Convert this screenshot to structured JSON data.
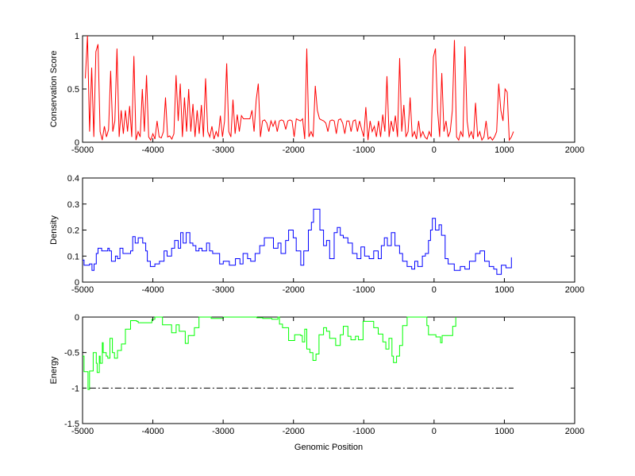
{
  "chart_data": [
    {
      "type": "line",
      "name": "conservation",
      "ylabel": "Conservation Score",
      "xlabel": "",
      "xlim": [
        -5000,
        2000
      ],
      "ylim": [
        0,
        1
      ],
      "xticks": [
        -5000,
        -4000,
        -3000,
        -2000,
        -1000,
        0,
        1000,
        2000
      ],
      "yticks": [
        0,
        0.5,
        1
      ],
      "ytick_labels": [
        "0",
        "0.5",
        "1"
      ],
      "color": "#ff0000",
      "x_start": -4960,
      "x_step": 30,
      "values": [
        0.6,
        1.0,
        0.1,
        0.7,
        0.05,
        0.85,
        0.92,
        0.1,
        0.02,
        0.15,
        0.05,
        0.12,
        0.67,
        0.1,
        0.2,
        0.88,
        0.05,
        0.3,
        0.08,
        0.3,
        0.1,
        0.34,
        0.05,
        0.81,
        0.02,
        0.1,
        0.05,
        0.5,
        0.1,
        0.63,
        0.05,
        0.02,
        0.08,
        0.03,
        0.2,
        0.05,
        0.04,
        0.1,
        0.42,
        0.05,
        0.06,
        0.03,
        0.08,
        0.63,
        0.2,
        0.55,
        0.05,
        0.42,
        0.1,
        0.5,
        0.1,
        0.36,
        0.05,
        0.3,
        0.08,
        0.35,
        0.05,
        0.6,
        0.1,
        0.05,
        0.15,
        0.03,
        0.1,
        0.05,
        0.25,
        0.05,
        0.2,
        0.74,
        0.1,
        0.05,
        0.4,
        0.08,
        0.26,
        0.1,
        0.25,
        0.22,
        0.22,
        0.22,
        0.22,
        0.3,
        0.1,
        0.4,
        0.55,
        0.05,
        0.2,
        0.21,
        0.18,
        0.1,
        0.2,
        0.15,
        0.2,
        0.1,
        0.2,
        0.21,
        0.2,
        0.12,
        0.2,
        0.21,
        0.2,
        0.05,
        0.22,
        0.21,
        0.2,
        0.22,
        0.03,
        0.88,
        0.05,
        0.1,
        0.05,
        0.53,
        0.3,
        0.22,
        0.21,
        0.2,
        0.18,
        0.1,
        0.2,
        0.21,
        0.2,
        0.08,
        0.21,
        0.22,
        0.18,
        0.08,
        0.2,
        0.2,
        0.1,
        0.2,
        0.21,
        0.1,
        0.2,
        0.12,
        0.05,
        0.33,
        0.02,
        0.2,
        0.1,
        0.15,
        0.05,
        0.2,
        0.05,
        0.26,
        0.1,
        0.62,
        0.05,
        0.2,
        0.1,
        0.25,
        0.05,
        0.79,
        0.1,
        0.35,
        0.05,
        0.1,
        0.42,
        0.05,
        0.1,
        0.03,
        0.2,
        0.05,
        0.1,
        0.05,
        0.03,
        0.1,
        0.05,
        0.8,
        0.88,
        0.3,
        0.05,
        0.65,
        0.1,
        0.2,
        0.05,
        0.1,
        0.3,
        0.96,
        0.05,
        0.02,
        0.1,
        0.05,
        0.9,
        0.2,
        0.05,
        0.1,
        0.03,
        0.37,
        0.05,
        0.1,
        0.02,
        0.05,
        0.2,
        0.03,
        0.05,
        0.02,
        0.05,
        0.1,
        0.55,
        0.3,
        0.2,
        0.5,
        0.47,
        0.02,
        0.05,
        0.1
      ]
    },
    {
      "type": "line",
      "name": "density",
      "ylabel": "Density",
      "xlabel": "",
      "xlim": [
        -5000,
        2000
      ],
      "ylim": [
        0,
        0.4
      ],
      "xticks": [
        -5000,
        -4000,
        -3000,
        -2000,
        -1000,
        0,
        1000,
        2000
      ],
      "yticks": [
        0,
        0.1,
        0.2,
        0.3,
        0.4
      ],
      "ytick_labels": [
        "0",
        "0.1",
        "0.2",
        "0.3",
        "0.4"
      ],
      "color": "#0000ff",
      "points": [
        [
          -5000,
          0.085
        ],
        [
          -4978,
          0.065
        ],
        [
          -4901,
          0.07
        ],
        [
          -4866,
          0.045
        ],
        [
          -4836,
          0.07
        ],
        [
          -4805,
          0.11
        ],
        [
          -4780,
          0.13
        ],
        [
          -4728,
          0.12
        ],
        [
          -4641,
          0.13
        ],
        [
          -4620,
          0.12
        ],
        [
          -4589,
          0.08
        ],
        [
          -4533,
          0.1
        ],
        [
          -4503,
          0.09
        ],
        [
          -4468,
          0.13
        ],
        [
          -4425,
          0.11
        ],
        [
          -4382,
          0.11
        ],
        [
          -4317,
          0.12
        ],
        [
          -4287,
          0.175
        ],
        [
          -4252,
          0.15
        ],
        [
          -4209,
          0.17
        ],
        [
          -4144,
          0.15
        ],
        [
          -4101,
          0.12
        ],
        [
          -4079,
          0.08
        ],
        [
          -4036,
          0.06
        ],
        [
          -3971,
          0.07
        ],
        [
          -3906,
          0.08
        ],
        [
          -3841,
          0.12
        ],
        [
          -3798,
          0.1
        ],
        [
          -3733,
          0.13
        ],
        [
          -3690,
          0.16
        ],
        [
          -3638,
          0.13
        ],
        [
          -3604,
          0.19
        ],
        [
          -3569,
          0.15
        ],
        [
          -3526,
          0.19
        ],
        [
          -3474,
          0.15
        ],
        [
          -3431,
          0.14
        ],
        [
          -3388,
          0.12
        ],
        [
          -3344,
          0.13
        ],
        [
          -3301,
          0.12
        ],
        [
          -3236,
          0.15
        ],
        [
          -3193,
          0.12
        ],
        [
          -3150,
          0.11
        ],
        [
          -3085,
          0.11
        ],
        [
          -3050,
          0.07
        ],
        [
          -2998,
          0.08
        ],
        [
          -2912,
          0.065
        ],
        [
          -2825,
          0.09
        ],
        [
          -2761,
          0.07
        ],
        [
          -2717,
          0.11
        ],
        [
          -2653,
          0.09
        ],
        [
          -2609,
          0.08
        ],
        [
          -2545,
          0.11
        ],
        [
          -2480,
          0.14
        ],
        [
          -2415,
          0.17
        ],
        [
          -2350,
          0.17
        ],
        [
          -2285,
          0.13
        ],
        [
          -2220,
          0.15
        ],
        [
          -2177,
          0.11
        ],
        [
          -2112,
          0.16
        ],
        [
          -2069,
          0.2
        ],
        [
          -2004,
          0.17
        ],
        [
          -1961,
          0.12
        ],
        [
          -1896,
          0.065
        ],
        [
          -1853,
          0.12
        ],
        [
          -1788,
          0.2
        ],
        [
          -1745,
          0.23
        ],
        [
          -1715,
          0.28
        ],
        [
          -1667,
          0.28
        ],
        [
          -1624,
          0.2
        ],
        [
          -1572,
          0.14
        ],
        [
          -1529,
          0.16
        ],
        [
          -1485,
          0.09
        ],
        [
          -1421,
          0.19
        ],
        [
          -1377,
          0.21
        ],
        [
          -1334,
          0.18
        ],
        [
          -1291,
          0.17
        ],
        [
          -1226,
          0.15
        ],
        [
          -1161,
          0.11
        ],
        [
          -1096,
          0.09
        ],
        [
          -1040,
          0.135
        ],
        [
          -988,
          0.1
        ],
        [
          -923,
          0.09
        ],
        [
          -859,
          0.12
        ],
        [
          -794,
          0.09
        ],
        [
          -750,
          0.14
        ],
        [
          -707,
          0.17
        ],
        [
          -664,
          0.14
        ],
        [
          -608,
          0.19
        ],
        [
          -556,
          0.14
        ],
        [
          -491,
          0.11
        ],
        [
          -448,
          0.08
        ],
        [
          -383,
          0.06
        ],
        [
          -318,
          0.05
        ],
        [
          -275,
          0.08
        ],
        [
          -232,
          0.06
        ],
        [
          -167,
          0.1
        ],
        [
          -124,
          0.11
        ],
        [
          -80,
          0.16
        ],
        [
          -50,
          0.2
        ],
        [
          -24,
          0.245
        ],
        [
          20,
          0.2
        ],
        [
          71,
          0.22
        ],
        [
          105,
          0.18
        ],
        [
          157,
          0.09
        ],
        [
          200,
          0.07
        ],
        [
          287,
          0.045
        ],
        [
          373,
          0.06
        ],
        [
          438,
          0.05
        ],
        [
          503,
          0.08
        ],
        [
          590,
          0.11
        ],
        [
          654,
          0.12
        ],
        [
          719,
          0.08
        ],
        [
          784,
          0.06
        ],
        [
          848,
          0.05
        ],
        [
          892,
          0.03
        ],
        [
          957,
          0.065
        ],
        [
          1022,
          0.055
        ],
        [
          1100,
          0.095
        ]
      ]
    },
    {
      "type": "line",
      "name": "energy",
      "ylabel": "Energy",
      "xlabel": "Genomic Position",
      "xlim": [
        -5000,
        2000
      ],
      "ylim": [
        -1.5,
        0
      ],
      "xticks": [
        -5000,
        -4000,
        -3000,
        -2000,
        -1000,
        0,
        1000,
        2000
      ],
      "yticks": [
        -1.5,
        -1,
        -0.5,
        0
      ],
      "ytick_labels": [
        "-1.5",
        "-1",
        "-0.5",
        "0"
      ],
      "color": "#00ff00",
      "threshold": {
        "value": -1,
        "x_range": [
          -4900,
          1130
        ],
        "style": "dash-dot",
        "color": "#000000"
      },
      "points": [
        [
          -5000,
          -0.55
        ],
        [
          -4978,
          -0.77
        ],
        [
          -4922,
          -1.02
        ],
        [
          -4901,
          -0.76
        ],
        [
          -4849,
          -0.5
        ],
        [
          -4805,
          -0.65
        ],
        [
          -4792,
          -0.78
        ],
        [
          -4762,
          -0.55
        ],
        [
          -4749,
          -0.65
        ],
        [
          -4719,
          -0.36
        ],
        [
          -4706,
          -0.5
        ],
        [
          -4663,
          -0.55
        ],
        [
          -4641,
          -0.58
        ],
        [
          -4611,
          -0.3
        ],
        [
          -4576,
          -0.5
        ],
        [
          -4546,
          -0.58
        ],
        [
          -4503,
          -0.47
        ],
        [
          -4447,
          -0.38
        ],
        [
          -4390,
          -0.17
        ],
        [
          -4317,
          -0.05
        ],
        [
          -4231,
          -0.06
        ],
        [
          -4209,
          -0.08
        ],
        [
          -4122,
          -0.08
        ],
        [
          -4014,
          -0.03
        ],
        [
          -3971,
          0
        ],
        [
          -3863,
          -0.11
        ],
        [
          -3733,
          -0.22
        ],
        [
          -3669,
          -0.11
        ],
        [
          -3625,
          -0.2
        ],
        [
          -3539,
          -0.37
        ],
        [
          -3496,
          -0.26
        ],
        [
          -3409,
          -0.15
        ],
        [
          -3344,
          0
        ],
        [
          -3171,
          -0.02
        ],
        [
          -2998,
          0
        ],
        [
          -2523,
          -0.01
        ],
        [
          -2437,
          -0.02
        ],
        [
          -2307,
          -0.03
        ],
        [
          -2220,
          0
        ],
        [
          -2199,
          -0.1
        ],
        [
          -2156,
          -0.15
        ],
        [
          -2069,
          -0.33
        ],
        [
          -1983,
          -0.25
        ],
        [
          -1896,
          -0.26
        ],
        [
          -1874,
          -0.35
        ],
        [
          -1840,
          -0.17
        ],
        [
          -1810,
          -0.45
        ],
        [
          -1766,
          -0.5
        ],
        [
          -1723,
          -0.61
        ],
        [
          -1680,
          -0.52
        ],
        [
          -1637,
          -0.25
        ],
        [
          -1572,
          -0.15
        ],
        [
          -1529,
          -0.2
        ],
        [
          -1485,
          -0.3
        ],
        [
          -1399,
          -0.4
        ],
        [
          -1334,
          -0.25
        ],
        [
          -1291,
          -0.13
        ],
        [
          -1226,
          -0.27
        ],
        [
          -1183,
          -0.32
        ],
        [
          -1118,
          -0.27
        ],
        [
          -1075,
          -0.32
        ],
        [
          -1010,
          -0.06
        ],
        [
          -859,
          -0.15
        ],
        [
          -794,
          -0.24
        ],
        [
          -729,
          -0.35
        ],
        [
          -686,
          -0.45
        ],
        [
          -642,
          -0.3
        ],
        [
          -599,
          -0.55
        ],
        [
          -578,
          -0.64
        ],
        [
          -534,
          -0.55
        ],
        [
          -491,
          -0.4
        ],
        [
          -448,
          -0.12
        ],
        [
          -383,
          0
        ],
        [
          -102,
          -0.12
        ],
        [
          -80,
          -0.25
        ],
        [
          27,
          -0.28
        ],
        [
          92,
          -0.36
        ],
        [
          114,
          -0.26
        ],
        [
          265,
          -0.13
        ],
        [
          309,
          0
        ]
      ]
    }
  ]
}
